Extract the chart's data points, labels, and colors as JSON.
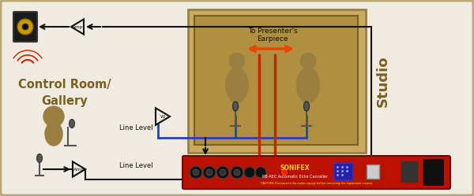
{
  "bg_outer": "#c8b88a",
  "bg_inner": "#f0ebe0",
  "border_color": "#b8a878",
  "control_room_text": "Control Room/\nGallery",
  "studio_text": "Studio",
  "text_color": "#7a6020",
  "line_level_text": "Line Level",
  "presenter_text": "To Presenter's\nEarpiece",
  "red_color": "#cc2200",
  "orange_arrow": "#ee4400",
  "blue_color": "#2244bb",
  "black": "#111111",
  "sonifex_red": "#bb1100",
  "sonifex_label": "SONIFEX",
  "studio_fill": "#c8aa60",
  "screen_fill": "#b09040",
  "person_color": "#9a8040",
  "speaker_dark": "#1a1a1a",
  "speaker_cone": "#cc9900",
  "amp_fill": "#f0ebe0",
  "wire_color": "#111111",
  "yellow_text": "#ffcc00",
  "white": "#ffffff"
}
